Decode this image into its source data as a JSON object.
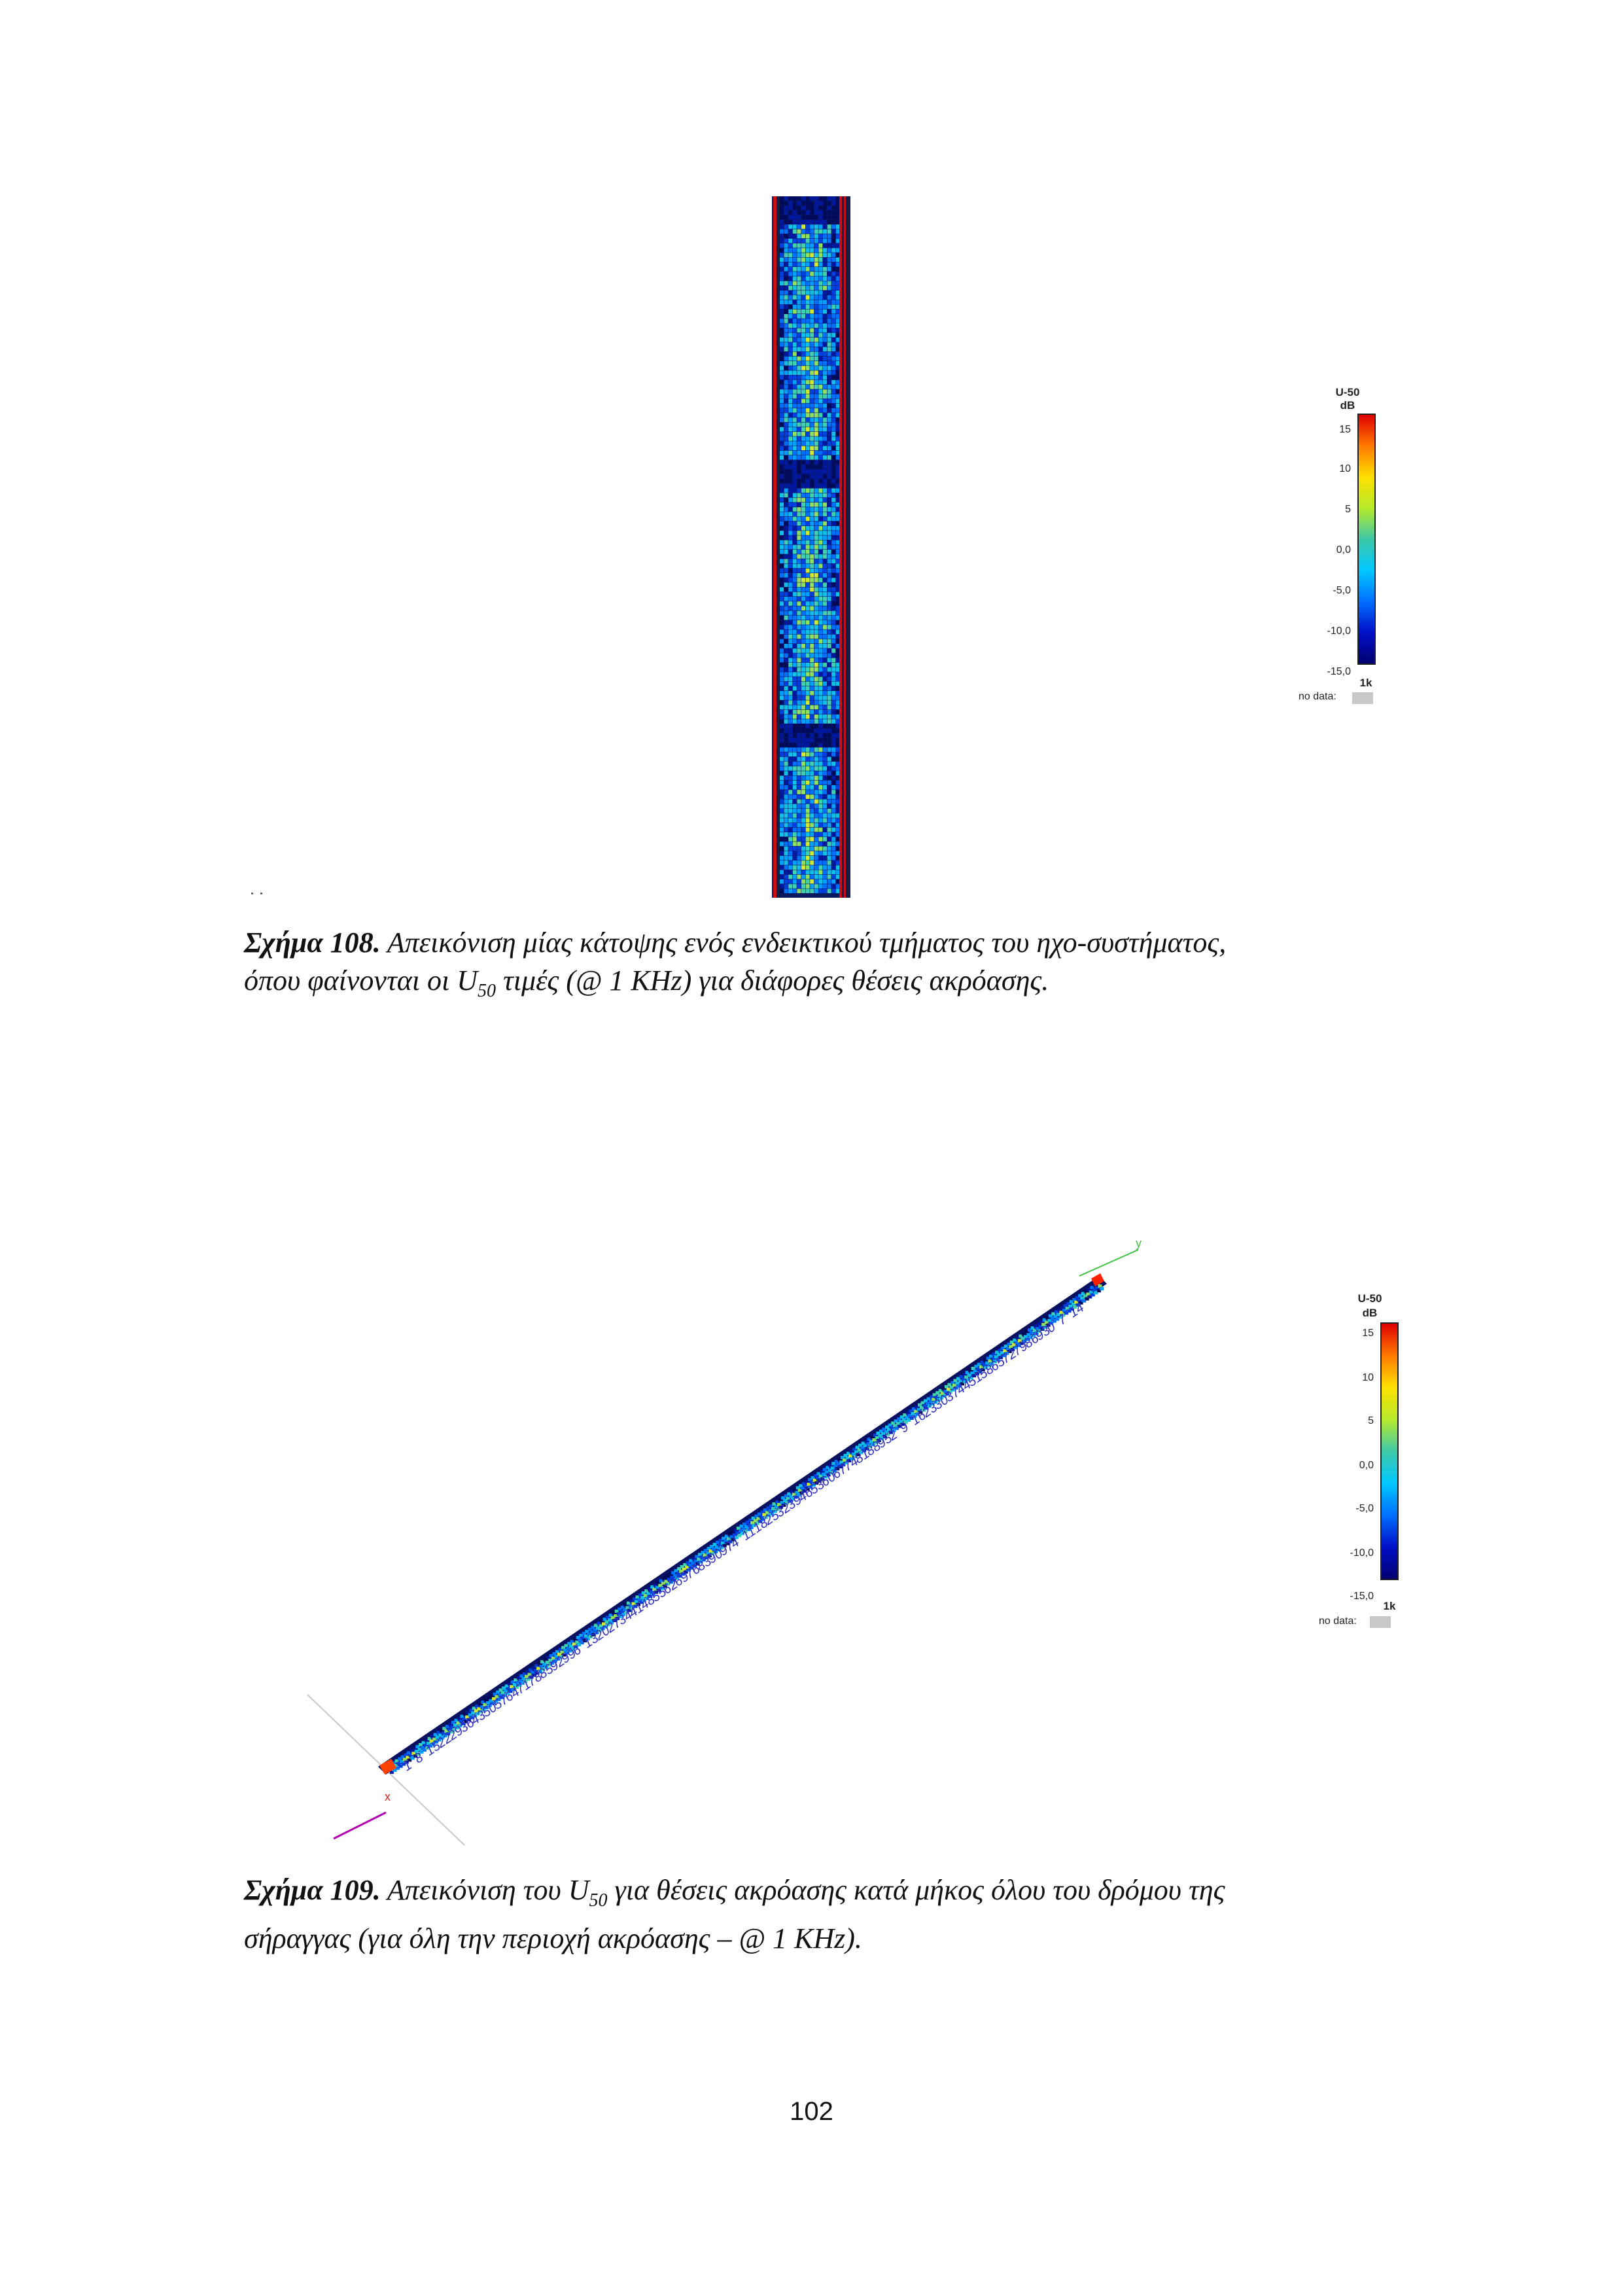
{
  "figure108": {
    "label": "Σχήμα 108.",
    "text_line1": " Απεικόνιση μίας κάτοψης ενός ενδεικτικού τμήματος του ηχο-συστήματος,",
    "text_line2_a": "όπου φαίνονται οι U",
    "text_line2_sub": "50",
    "text_line2_b": " τιμές  (@ 1 KHz) για διάφορες θέσεις ακρόασης."
  },
  "figure109": {
    "label": "Σχήμα 109.",
    "text_line1_a": " Απεικόνιση του U",
    "text_line1_sub": "50",
    "text_line1_b": " για θέσεις ακρόασης κατά μήκος όλου του δρόμου της",
    "text_line2": "σήραγγας (για όλη την περιοχή ακρόασης – @ 1 KHz).",
    "axis_y": "y",
    "axis_x": "x"
  },
  "legend": {
    "title_line1": "U-50",
    "title_line2": "dB",
    "ticks": [
      "15",
      "10",
      "5",
      "0,0",
      "-5,0",
      "-10,0",
      "-15,0"
    ],
    "freq": "1k",
    "no_data": "no data:"
  },
  "colors": {
    "scale_top": "#e00000",
    "scale_bottom": "#000070",
    "tunnel_wall": "#c81010"
  },
  "page_number": "102"
}
